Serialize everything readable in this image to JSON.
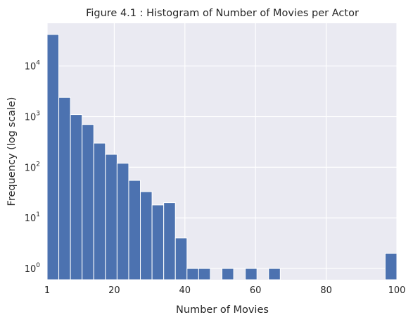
{
  "chart_data": {
    "type": "bar",
    "title": "Figure 4.1 :  Histogram of Number of Movies per Actor",
    "xlabel": "Number of Movies",
    "ylabel": "Frequency (log scale)",
    "yscale": "log",
    "grid": true,
    "xlim": [
      1,
      100
    ],
    "ylim": [
      0.6,
      70000
    ],
    "x_ticks": [
      "1",
      "20",
      "40",
      "60",
      "80",
      "100"
    ],
    "y_ticks": [
      {
        "base": "10",
        "exp": "0"
      },
      {
        "base": "10",
        "exp": "1"
      },
      {
        "base": "10",
        "exp": "2"
      },
      {
        "base": "10",
        "exp": "3"
      },
      {
        "base": "10",
        "exp": "4"
      }
    ],
    "bin_width": 3.3,
    "bin_starts": [
      1,
      4.3,
      7.6,
      10.9,
      14.2,
      17.5,
      20.8,
      24.1,
      27.4,
      30.7,
      34,
      37.3,
      40.6,
      43.9,
      47.2,
      50.5,
      53.8,
      57.1,
      60.4,
      63.7,
      67,
      70.3,
      73.6,
      76.9,
      80.2,
      83.5,
      86.8,
      90.1,
      93.4,
      96.7
    ],
    "values": [
      42000,
      2400,
      1100,
      700,
      300,
      180,
      120,
      55,
      33,
      18,
      20,
      4,
      1,
      1,
      0,
      1,
      0,
      1,
      0,
      1,
      0,
      0,
      0,
      0,
      0,
      0,
      0,
      0,
      0,
      2
    ],
    "bar_color": "#4c72b0",
    "background_color": "#eaeaf2"
  }
}
